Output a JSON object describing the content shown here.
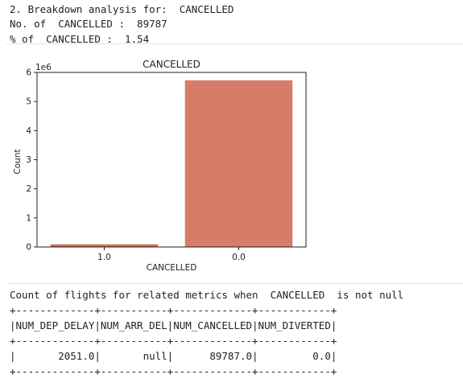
{
  "output_text": {
    "line1": "2. Breakdown analysis for:  CANCELLED",
    "line2": "No. of  CANCELLED :  89787",
    "line3": "% of  CANCELLED :  1.54"
  },
  "chart_data": {
    "type": "bar",
    "title": "CANCELLED",
    "xlabel": "CANCELLED",
    "ylabel": "Count",
    "offset_label": "1e6",
    "categories": [
      "1.0",
      "0.0"
    ],
    "values": [
      89787,
      5729195
    ],
    "ylim": [
      0,
      6000000
    ],
    "yticks": [
      0,
      1000000,
      2000000,
      3000000,
      4000000,
      5000000,
      6000000
    ],
    "ytick_labels": [
      "0",
      "1",
      "2",
      "3",
      "4",
      "5",
      "6"
    ],
    "bar_colors": [
      "#d46a56",
      "#d87c6a"
    ],
    "grid": false
  },
  "table_block": {
    "heading": "Count of flights for related metrics when  CANCELLED  is not null",
    "border_top": "+-------------+-----------+-------------+------------+",
    "header_row": "|NUM_DEP_DELAY|NUM_ARR_DEL|NUM_CANCELLED|NUM_DIVERTED|",
    "border_mid": "+-------------+-----------+-------------+------------+",
    "data_row": "|       2051.0|       null|      89787.0|         0.0|",
    "border_bottom": "+-------------+-----------+-------------+------------+"
  }
}
